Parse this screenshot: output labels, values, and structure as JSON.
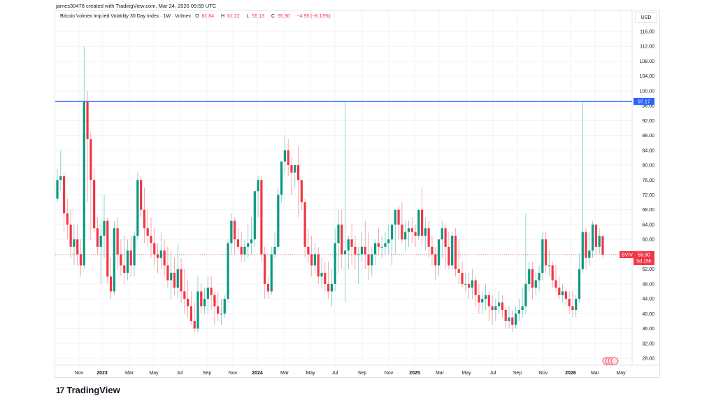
{
  "header": {
    "credit": "james30478 created with TradingView.com, Mar 24, 2026 09:59 UTC"
  },
  "legend": {
    "symbol": "Bitcoin Volmex Implied Volatility 30 Day Index · 1W · Volmex",
    "open_label": "O",
    "open": "60.84",
    "high_label": "H",
    "high": "61.22",
    "low_label": "L",
    "low": "55.13",
    "close_label": "C",
    "close": "55.90",
    "change": "−4.95 (−8.13%)"
  },
  "price_scale": {
    "currency": "USD",
    "ticks": [
      "116.00",
      "112.00",
      "108.00",
      "104.00",
      "100.00",
      "96.00",
      "92.00",
      "88.00",
      "84.00",
      "80.00",
      "76.00",
      "72.00",
      "68.00",
      "64.00",
      "60.00",
      "56.00",
      "52.00",
      "48.00",
      "44.00",
      "40.00",
      "36.00",
      "32.00",
      "28.00"
    ]
  },
  "horizontal_line": {
    "value": 97.17,
    "label": "97.17",
    "color": "#2962ff"
  },
  "last_price": {
    "ticker": "BVIV",
    "value": "55.90",
    "countdown": "5d 15h",
    "color": "#f23645"
  },
  "time_scale": {
    "labels": [
      {
        "text": "Nov",
        "x": 113,
        "bold": false
      },
      {
        "text": "2023",
        "x": 146,
        "bold": true
      },
      {
        "text": "Mar",
        "x": 185,
        "bold": false
      },
      {
        "text": "May",
        "x": 220,
        "bold": false
      },
      {
        "text": "Jul",
        "x": 257,
        "bold": false
      },
      {
        "text": "Sep",
        "x": 296,
        "bold": false
      },
      {
        "text": "Nov",
        "x": 333,
        "bold": false
      },
      {
        "text": "2024",
        "x": 368,
        "bold": true
      },
      {
        "text": "Mar",
        "x": 407,
        "bold": false
      },
      {
        "text": "May",
        "x": 444,
        "bold": false
      },
      {
        "text": "Jul",
        "x": 479,
        "bold": false
      },
      {
        "text": "Sep",
        "x": 518,
        "bold": false
      },
      {
        "text": "Nov",
        "x": 556,
        "bold": false
      },
      {
        "text": "2025",
        "x": 593,
        "bold": true
      },
      {
        "text": "Mar",
        "x": 629,
        "bold": false
      },
      {
        "text": "May",
        "x": 667,
        "bold": false
      },
      {
        "text": "Jul",
        "x": 705,
        "bold": false
      },
      {
        "text": "Sep",
        "x": 740,
        "bold": false
      },
      {
        "text": "Nov",
        "x": 777,
        "bold": false
      },
      {
        "text": "2026",
        "x": 816,
        "bold": true
      },
      {
        "text": "Mar",
        "x": 851,
        "bold": false
      },
      {
        "text": "May",
        "x": 888,
        "bold": false
      }
    ]
  },
  "footer": {
    "brand": "TradingView",
    "logo_mark": "17"
  },
  "colors": {
    "up": "#089981",
    "down": "#f23645",
    "grid": "#f0f3fa"
  },
  "chart_data": {
    "type": "candlestick",
    "title": "Bitcoin Volmex Implied Volatility 30 Day Index · 1W · Volmex",
    "xlabel": "",
    "ylabel": "USD",
    "ylim": [
      26,
      118
    ],
    "grid": true,
    "x_start": "Sep 2022",
    "x_end": "Mar 2026",
    "interval": "1W",
    "horizontal_line": 97.17,
    "last": {
      "open": 60.84,
      "high": 61.22,
      "low": 55.13,
      "close": 55.9
    },
    "ohlc": [
      [
        71,
        79,
        70,
        76
      ],
      [
        76,
        84,
        73,
        77
      ],
      [
        77,
        78,
        62,
        67
      ],
      [
        67,
        71,
        60,
        64
      ],
      [
        64,
        68,
        55,
        58
      ],
      [
        58,
        64,
        53,
        60
      ],
      [
        60,
        64,
        53,
        56
      ],
      [
        56,
        60,
        50,
        53
      ],
      [
        53,
        112,
        52,
        97
      ],
      [
        97,
        100,
        70,
        87
      ],
      [
        87,
        89,
        60,
        76
      ],
      [
        76,
        79,
        62,
        63
      ],
      [
        63,
        66,
        56,
        58
      ],
      [
        58,
        64,
        48,
        61
      ],
      [
        61,
        72,
        55,
        65
      ],
      [
        65,
        66,
        48,
        50
      ],
      [
        50,
        55,
        44,
        46
      ],
      [
        46,
        65,
        45,
        63
      ],
      [
        63,
        66,
        52,
        56
      ],
      [
        56,
        60,
        50,
        53
      ],
      [
        53,
        61,
        48,
        51
      ],
      [
        51,
        60,
        49,
        57
      ],
      [
        57,
        61,
        50,
        53
      ],
      [
        53,
        62,
        50,
        61
      ],
      [
        61,
        78,
        60,
        76
      ],
      [
        76,
        77,
        66,
        68
      ],
      [
        68,
        74,
        59,
        63
      ],
      [
        63,
        68,
        58,
        61
      ],
      [
        61,
        66,
        55,
        59
      ],
      [
        59,
        63,
        53,
        56
      ],
      [
        56,
        59,
        51,
        55
      ],
      [
        55,
        62,
        52,
        57
      ],
      [
        57,
        60,
        50,
        53
      ],
      [
        53,
        58,
        47,
        49
      ],
      [
        49,
        57,
        44,
        51
      ],
      [
        51,
        55,
        45,
        47
      ],
      [
        47,
        59,
        44,
        52
      ],
      [
        52,
        55,
        43,
        46
      ],
      [
        46,
        52,
        40,
        44
      ],
      [
        44,
        49,
        39,
        42
      ],
      [
        42,
        46,
        37,
        38
      ],
      [
        38,
        43,
        35,
        36
      ],
      [
        36,
        50,
        35,
        46
      ],
      [
        46,
        48,
        40,
        42
      ],
      [
        42,
        47,
        40,
        44
      ],
      [
        44,
        50,
        40,
        47
      ],
      [
        47,
        50,
        41,
        45
      ],
      [
        45,
        46,
        37,
        42
      ],
      [
        42,
        46,
        38,
        40
      ],
      [
        40,
        44,
        37,
        40
      ],
      [
        40,
        45,
        39,
        44
      ],
      [
        44,
        60,
        43,
        59
      ],
      [
        59,
        67,
        56,
        65
      ],
      [
        65,
        66,
        56,
        60
      ],
      [
        60,
        63,
        57,
        58
      ],
      [
        58,
        62,
        54,
        56
      ],
      [
        56,
        60,
        54,
        58
      ],
      [
        58,
        64,
        55,
        59
      ],
      [
        59,
        66,
        56,
        60
      ],
      [
        60,
        70,
        58,
        73
      ],
      [
        73,
        77,
        66,
        76
      ],
      [
        76,
        77,
        54,
        56
      ],
      [
        56,
        58,
        44,
        48
      ],
      [
        48,
        50,
        44,
        46
      ],
      [
        46,
        58,
        45,
        56
      ],
      [
        56,
        62,
        55,
        58
      ],
      [
        58,
        74,
        57,
        72
      ],
      [
        72,
        77,
        70,
        81
      ],
      [
        81,
        88,
        78,
        84
      ],
      [
        84,
        87,
        77,
        80
      ],
      [
        80,
        82,
        72,
        78
      ],
      [
        78,
        80,
        74,
        80
      ],
      [
        80,
        85,
        66,
        76
      ],
      [
        76,
        76,
        68,
        70
      ],
      [
        70,
        71,
        55,
        58
      ],
      [
        58,
        63,
        54,
        56
      ],
      [
        56,
        61,
        50,
        53
      ],
      [
        53,
        59,
        51,
        56
      ],
      [
        56,
        58,
        48,
        50
      ],
      [
        50,
        55,
        47,
        51
      ],
      [
        51,
        54,
        46,
        48
      ],
      [
        48,
        54,
        44,
        46
      ],
      [
        46,
        52,
        42,
        48
      ],
      [
        48,
        63,
        46,
        59
      ],
      [
        59,
        68,
        51,
        64
      ],
      [
        64,
        68,
        52,
        56
      ],
      [
        56,
        97,
        43,
        57
      ],
      [
        57,
        61,
        52,
        60
      ],
      [
        60,
        64,
        53,
        58
      ],
      [
        58,
        61,
        52,
        56
      ],
      [
        56,
        58,
        48,
        56
      ],
      [
        56,
        62,
        54,
        58
      ],
      [
        58,
        65,
        52,
        56
      ],
      [
        56,
        62,
        49,
        53
      ],
      [
        53,
        58,
        50,
        56
      ],
      [
        56,
        60,
        53,
        59
      ],
      [
        59,
        63,
        56,
        58
      ],
      [
        58,
        61,
        55,
        58
      ],
      [
        58,
        62,
        56,
        59
      ],
      [
        59,
        64,
        56,
        60
      ],
      [
        60,
        63,
        53,
        64
      ],
      [
        64,
        68,
        56,
        68
      ],
      [
        68,
        69,
        60,
        64
      ],
      [
        64,
        70,
        59,
        60
      ],
      [
        60,
        65,
        57,
        62
      ],
      [
        62,
        65,
        58,
        63
      ],
      [
        63,
        66,
        59,
        62
      ],
      [
        62,
        64,
        58,
        61
      ],
      [
        61,
        68,
        60,
        68
      ],
      [
        68,
        74,
        58,
        61
      ],
      [
        61,
        66,
        57,
        63
      ],
      [
        63,
        65,
        55,
        58
      ],
      [
        58,
        61,
        53,
        56
      ],
      [
        56,
        58,
        49,
        53
      ],
      [
        53,
        60,
        50,
        60
      ],
      [
        60,
        65,
        55,
        63
      ],
      [
        63,
        64,
        52,
        58
      ],
      [
        58,
        62,
        52,
        53
      ],
      [
        53,
        62,
        52,
        61
      ],
      [
        61,
        63,
        50,
        52
      ],
      [
        52,
        60,
        48,
        51
      ],
      [
        51,
        54,
        47,
        48
      ],
      [
        48,
        51,
        46,
        48
      ],
      [
        48,
        51,
        44,
        47
      ],
      [
        47,
        52,
        44,
        49
      ],
      [
        49,
        50,
        42,
        45
      ],
      [
        45,
        48,
        40,
        43
      ],
      [
        43,
        46,
        40,
        44
      ],
      [
        44,
        48,
        41,
        45
      ],
      [
        45,
        46,
        38,
        42
      ],
      [
        42,
        45,
        37,
        41
      ],
      [
        41,
        44,
        38,
        42
      ],
      [
        42,
        46,
        40,
        43
      ],
      [
        43,
        45,
        39,
        41
      ],
      [
        41,
        42,
        36,
        38
      ],
      [
        38,
        42,
        36,
        39
      ],
      [
        39,
        41,
        35,
        37
      ],
      [
        37,
        42,
        36,
        40
      ],
      [
        40,
        44,
        38,
        41
      ],
      [
        41,
        47,
        39,
        42
      ],
      [
        42,
        67,
        40,
        48
      ],
      [
        48,
        54,
        46,
        52
      ],
      [
        52,
        54,
        44,
        47
      ],
      [
        47,
        51,
        45,
        49
      ],
      [
        49,
        53,
        46,
        51
      ],
      [
        51,
        62,
        49,
        60
      ],
      [
        60,
        62,
        51,
        53
      ],
      [
        53,
        57,
        50,
        53
      ],
      [
        53,
        54,
        47,
        49
      ],
      [
        49,
        53,
        46,
        47
      ],
      [
        47,
        50,
        44,
        45
      ],
      [
        45,
        48,
        43,
        46
      ],
      [
        46,
        47,
        42,
        44
      ],
      [
        44,
        46,
        40,
        42
      ],
      [
        42,
        46,
        39,
        41
      ],
      [
        41,
        45,
        39,
        44
      ],
      [
        44,
        56,
        43,
        52
      ],
      [
        52,
        97,
        51,
        62
      ],
      [
        62,
        63,
        52,
        55
      ],
      [
        55,
        62,
        53,
        57
      ],
      [
        57,
        65,
        55,
        64
      ],
      [
        64,
        64,
        56,
        58
      ],
      [
        58,
        63,
        56,
        61
      ],
      [
        60.84,
        61.22,
        55.13,
        55.9
      ]
    ]
  }
}
